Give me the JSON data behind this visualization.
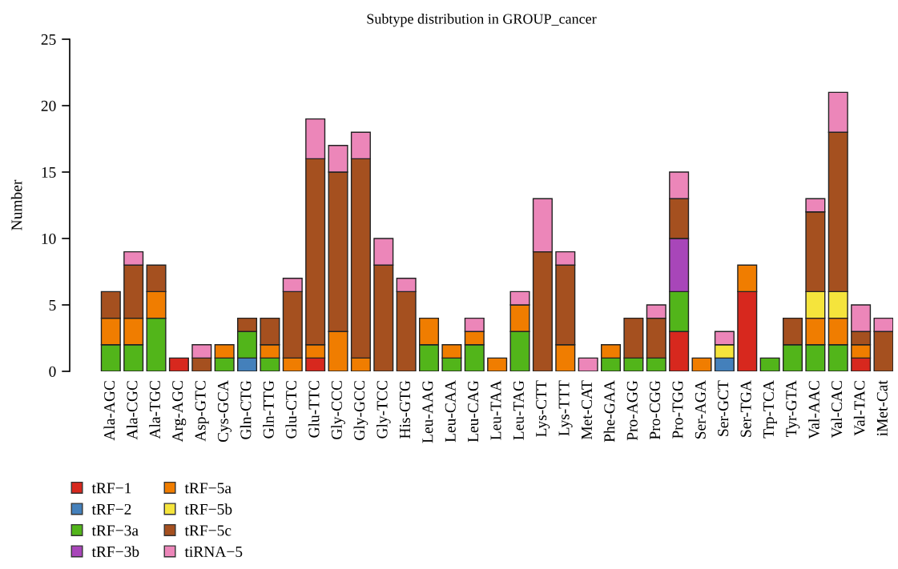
{
  "chart_data": {
    "type": "bar",
    "title": "Subtype distribution in GROUP_cancer",
    "ylabel": "Number",
    "categories": [
      "Ala-AGC",
      "Ala-CGC",
      "Ala-TGC",
      "Arg-AGC",
      "Asp-GTC",
      "Cys-GCA",
      "Gln-CTG",
      "Gln-TTG",
      "Glu-CTC",
      "Glu-TTC",
      "Gly-CCC",
      "Gly-GCC",
      "Gly-TCC",
      "His-GTG",
      "Leu-AAG",
      "Leu-CAA",
      "Leu-CAG",
      "Leu-TAA",
      "Leu-TAG",
      "Lys-CTT",
      "Lys-TTT",
      "Met-CAT",
      "Phe-GAA",
      "Pro-AGG",
      "Pro-CGG",
      "Pro-TGG",
      "Ser-AGA",
      "Ser-GCT",
      "Ser-TGA",
      "Trp-TCA",
      "Tyr-GTA",
      "Val-AAC",
      "Val-CAC",
      "Val-TAC",
      "iMet-Cat"
    ],
    "stacked": true,
    "ylim": [
      0,
      25
    ],
    "yticks": [
      0,
      5,
      10,
      15,
      20,
      25
    ],
    "grid": false,
    "legend": "bottom left",
    "series": [
      {
        "name": "tRF−1",
        "color": "#d7281e",
        "values": [
          null,
          null,
          null,
          1,
          null,
          null,
          null,
          null,
          null,
          1,
          null,
          null,
          null,
          null,
          null,
          null,
          null,
          null,
          null,
          null,
          null,
          null,
          null,
          null,
          null,
          3,
          null,
          null,
          6,
          null,
          null,
          null,
          null,
          1,
          null
        ]
      },
      {
        "name": "tRF−2",
        "color": "#4480bb",
        "values": [
          null,
          null,
          null,
          null,
          null,
          null,
          1,
          null,
          null,
          null,
          null,
          null,
          null,
          null,
          null,
          null,
          null,
          null,
          null,
          null,
          null,
          null,
          null,
          null,
          null,
          null,
          null,
          1,
          null,
          null,
          null,
          null,
          null,
          null,
          null
        ]
      },
      {
        "name": "tRF−3a",
        "color": "#52b51a",
        "values": [
          2,
          2,
          4,
          null,
          null,
          1,
          2,
          1,
          null,
          null,
          null,
          null,
          null,
          null,
          2,
          1,
          2,
          null,
          3,
          null,
          null,
          null,
          1,
          1,
          1,
          3,
          null,
          null,
          null,
          1,
          2,
          2,
          2,
          null,
          null
        ]
      },
      {
        "name": "tRF−3b",
        "color": "#a846b9",
        "values": [
          null,
          null,
          null,
          null,
          null,
          null,
          null,
          null,
          null,
          null,
          null,
          null,
          null,
          null,
          null,
          null,
          null,
          null,
          null,
          null,
          null,
          null,
          null,
          null,
          null,
          4,
          null,
          null,
          null,
          null,
          null,
          null,
          null,
          null,
          null
        ]
      },
      {
        "name": "tRF−5a",
        "color": "#f07d00",
        "values": [
          2,
          2,
          2,
          null,
          null,
          1,
          null,
          1,
          1,
          1,
          3,
          1,
          null,
          null,
          2,
          1,
          1,
          1,
          2,
          null,
          2,
          null,
          1,
          null,
          null,
          null,
          1,
          null,
          2,
          null,
          null,
          2,
          2,
          1,
          null
        ]
      },
      {
        "name": "tRF−5b",
        "color": "#f5e43c",
        "values": [
          null,
          null,
          null,
          null,
          null,
          null,
          null,
          null,
          null,
          null,
          null,
          null,
          null,
          null,
          null,
          null,
          null,
          null,
          null,
          null,
          null,
          null,
          null,
          null,
          null,
          null,
          null,
          1,
          null,
          null,
          null,
          2,
          2,
          null,
          null
        ]
      },
      {
        "name": "tRF−5c",
        "color": "#a5501f",
        "values": [
          2,
          4,
          2,
          null,
          1,
          null,
          1,
          2,
          5,
          14,
          12,
          15,
          8,
          6,
          null,
          null,
          null,
          null,
          null,
          9,
          6,
          null,
          null,
          3,
          3,
          3,
          null,
          null,
          null,
          null,
          2,
          6,
          12,
          1,
          3
        ]
      },
      {
        "name": "tiRNA−5",
        "color": "#ec86b9",
        "values": [
          null,
          1,
          null,
          null,
          1,
          null,
          null,
          null,
          1,
          3,
          2,
          2,
          2,
          1,
          null,
          null,
          1,
          null,
          1,
          4,
          1,
          1,
          null,
          null,
          1,
          2,
          null,
          1,
          null,
          null,
          null,
          1,
          3,
          2,
          1
        ]
      }
    ]
  }
}
